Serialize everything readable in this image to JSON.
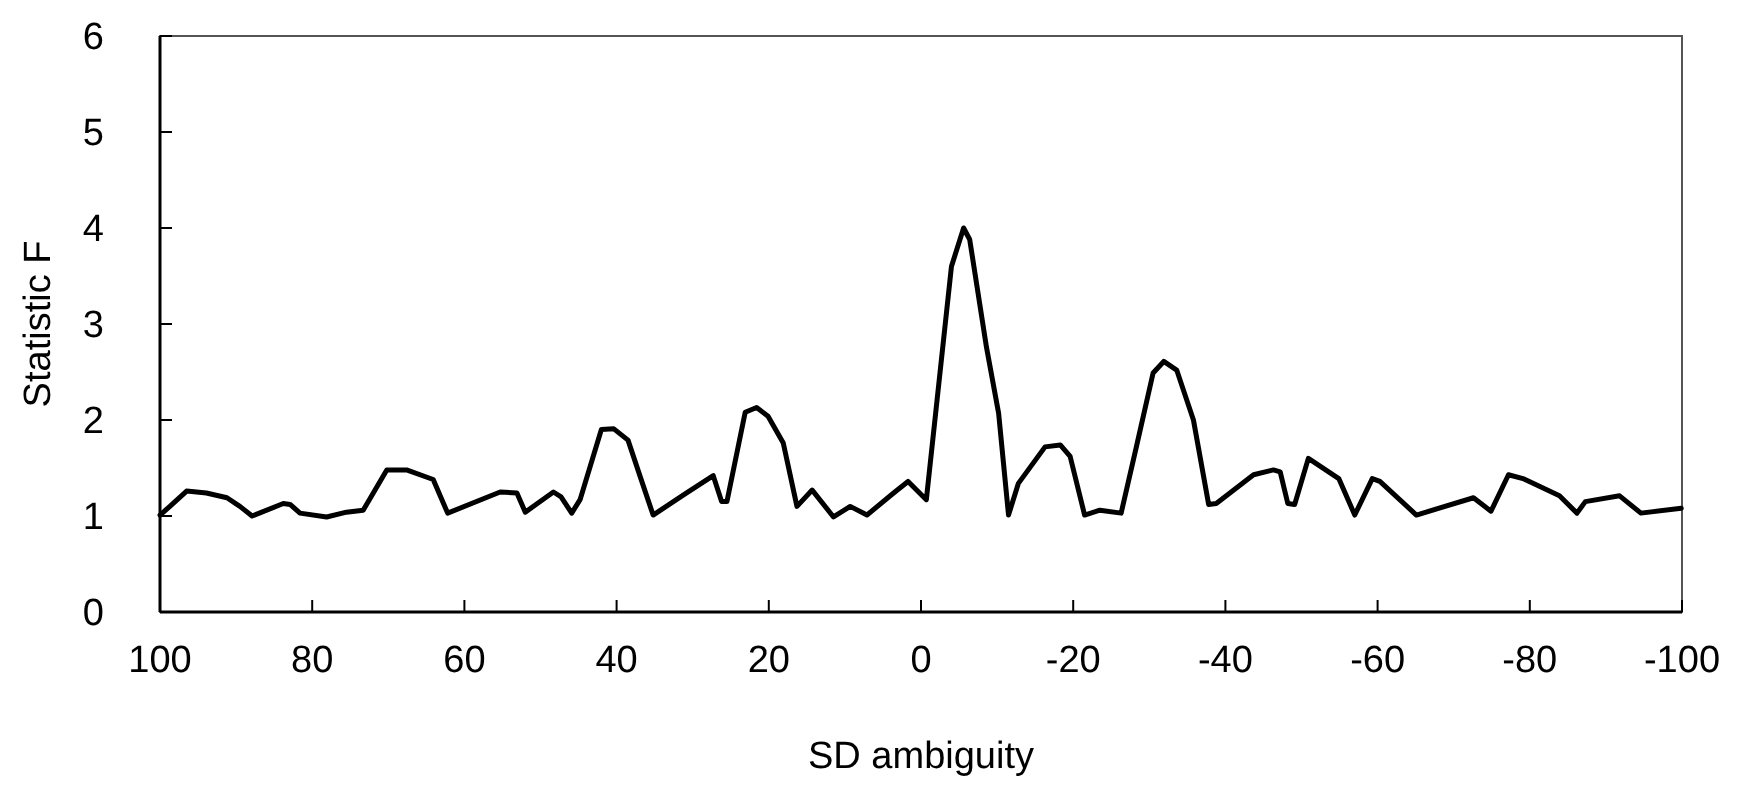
{
  "chart_data": {
    "type": "line",
    "xlabel": "SD ambiguity",
    "ylabel": "Statistic F",
    "xlim": [
      100,
      -100
    ],
    "xticks": [
      100,
      80,
      60,
      40,
      20,
      0,
      -20,
      -40,
      -60,
      -80,
      -100
    ],
    "ylim": [
      0,
      6
    ],
    "yticks": [
      0,
      1,
      2,
      3,
      4,
      5,
      6
    ],
    "grid": false,
    "marker": "none",
    "line_style": "solid",
    "series": [
      {
        "color": "#000000",
        "x": [
          100,
          98.7,
          96.5,
          93.9,
          91.2,
          89.5,
          87.9,
          83.8,
          82.9,
          81.6,
          78.1,
          75.5,
          73.3,
          70.2,
          67.6,
          64.1,
          62.2,
          55.3,
          53.1,
          52.0,
          48.3,
          47.3,
          45.9,
          44.8,
          42.0,
          40.4,
          38.5,
          36.9,
          35.2,
          30.8,
          27.3,
          26.2,
          25.5,
          23.1,
          21.6,
          20.1,
          18.1,
          16.3,
          14.3,
          11.5,
          9.3,
          7.1,
          3.6,
          1.7,
          -0.7,
          -4.0,
          -5.6,
          -6.4,
          -8.6,
          -10.2,
          -11.5,
          -12.8,
          -16.3,
          -18.3,
          -19.6,
          -21.5,
          -23.5,
          -26.3,
          -28.3,
          -30.5,
          -31.9,
          -33.6,
          -35.8,
          -37.8,
          -38.8,
          -43.7,
          -46.3,
          -47.2,
          -48.2,
          -49.1,
          -50.9,
          -54.9,
          -57.0,
          -59.3,
          -60.3,
          -65.1,
          -72.6,
          -74.9,
          -77.2,
          -79.1,
          -83.9,
          -86.2,
          -87.3,
          -91.8,
          -94.6,
          -99.9
        ],
        "values": [
          1.01,
          1.1,
          1.26,
          1.24,
          1.19,
          1.1,
          1.0,
          1.13,
          1.12,
          1.03,
          0.99,
          1.04,
          1.06,
          1.48,
          1.48,
          1.38,
          1.03,
          1.25,
          1.24,
          1.04,
          1.25,
          1.2,
          1.03,
          1.17,
          1.9,
          1.91,
          1.79,
          1.41,
          1.01,
          1.24,
          1.42,
          1.15,
          1.15,
          2.08,
          2.13,
          2.04,
          1.76,
          1.1,
          1.27,
          0.99,
          1.1,
          1.01,
          1.24,
          1.36,
          1.17,
          3.6,
          4.0,
          3.88,
          2.76,
          2.07,
          1.01,
          1.34,
          1.72,
          1.74,
          1.62,
          1.01,
          1.06,
          1.03,
          1.72,
          2.49,
          2.61,
          2.52,
          2.0,
          1.12,
          1.13,
          1.43,
          1.48,
          1.46,
          1.13,
          1.12,
          1.6,
          1.39,
          1.01,
          1.39,
          1.36,
          1.01,
          1.19,
          1.05,
          1.43,
          1.39,
          1.21,
          1.03,
          1.15,
          1.21,
          1.03,
          1.08
        ]
      }
    ]
  }
}
